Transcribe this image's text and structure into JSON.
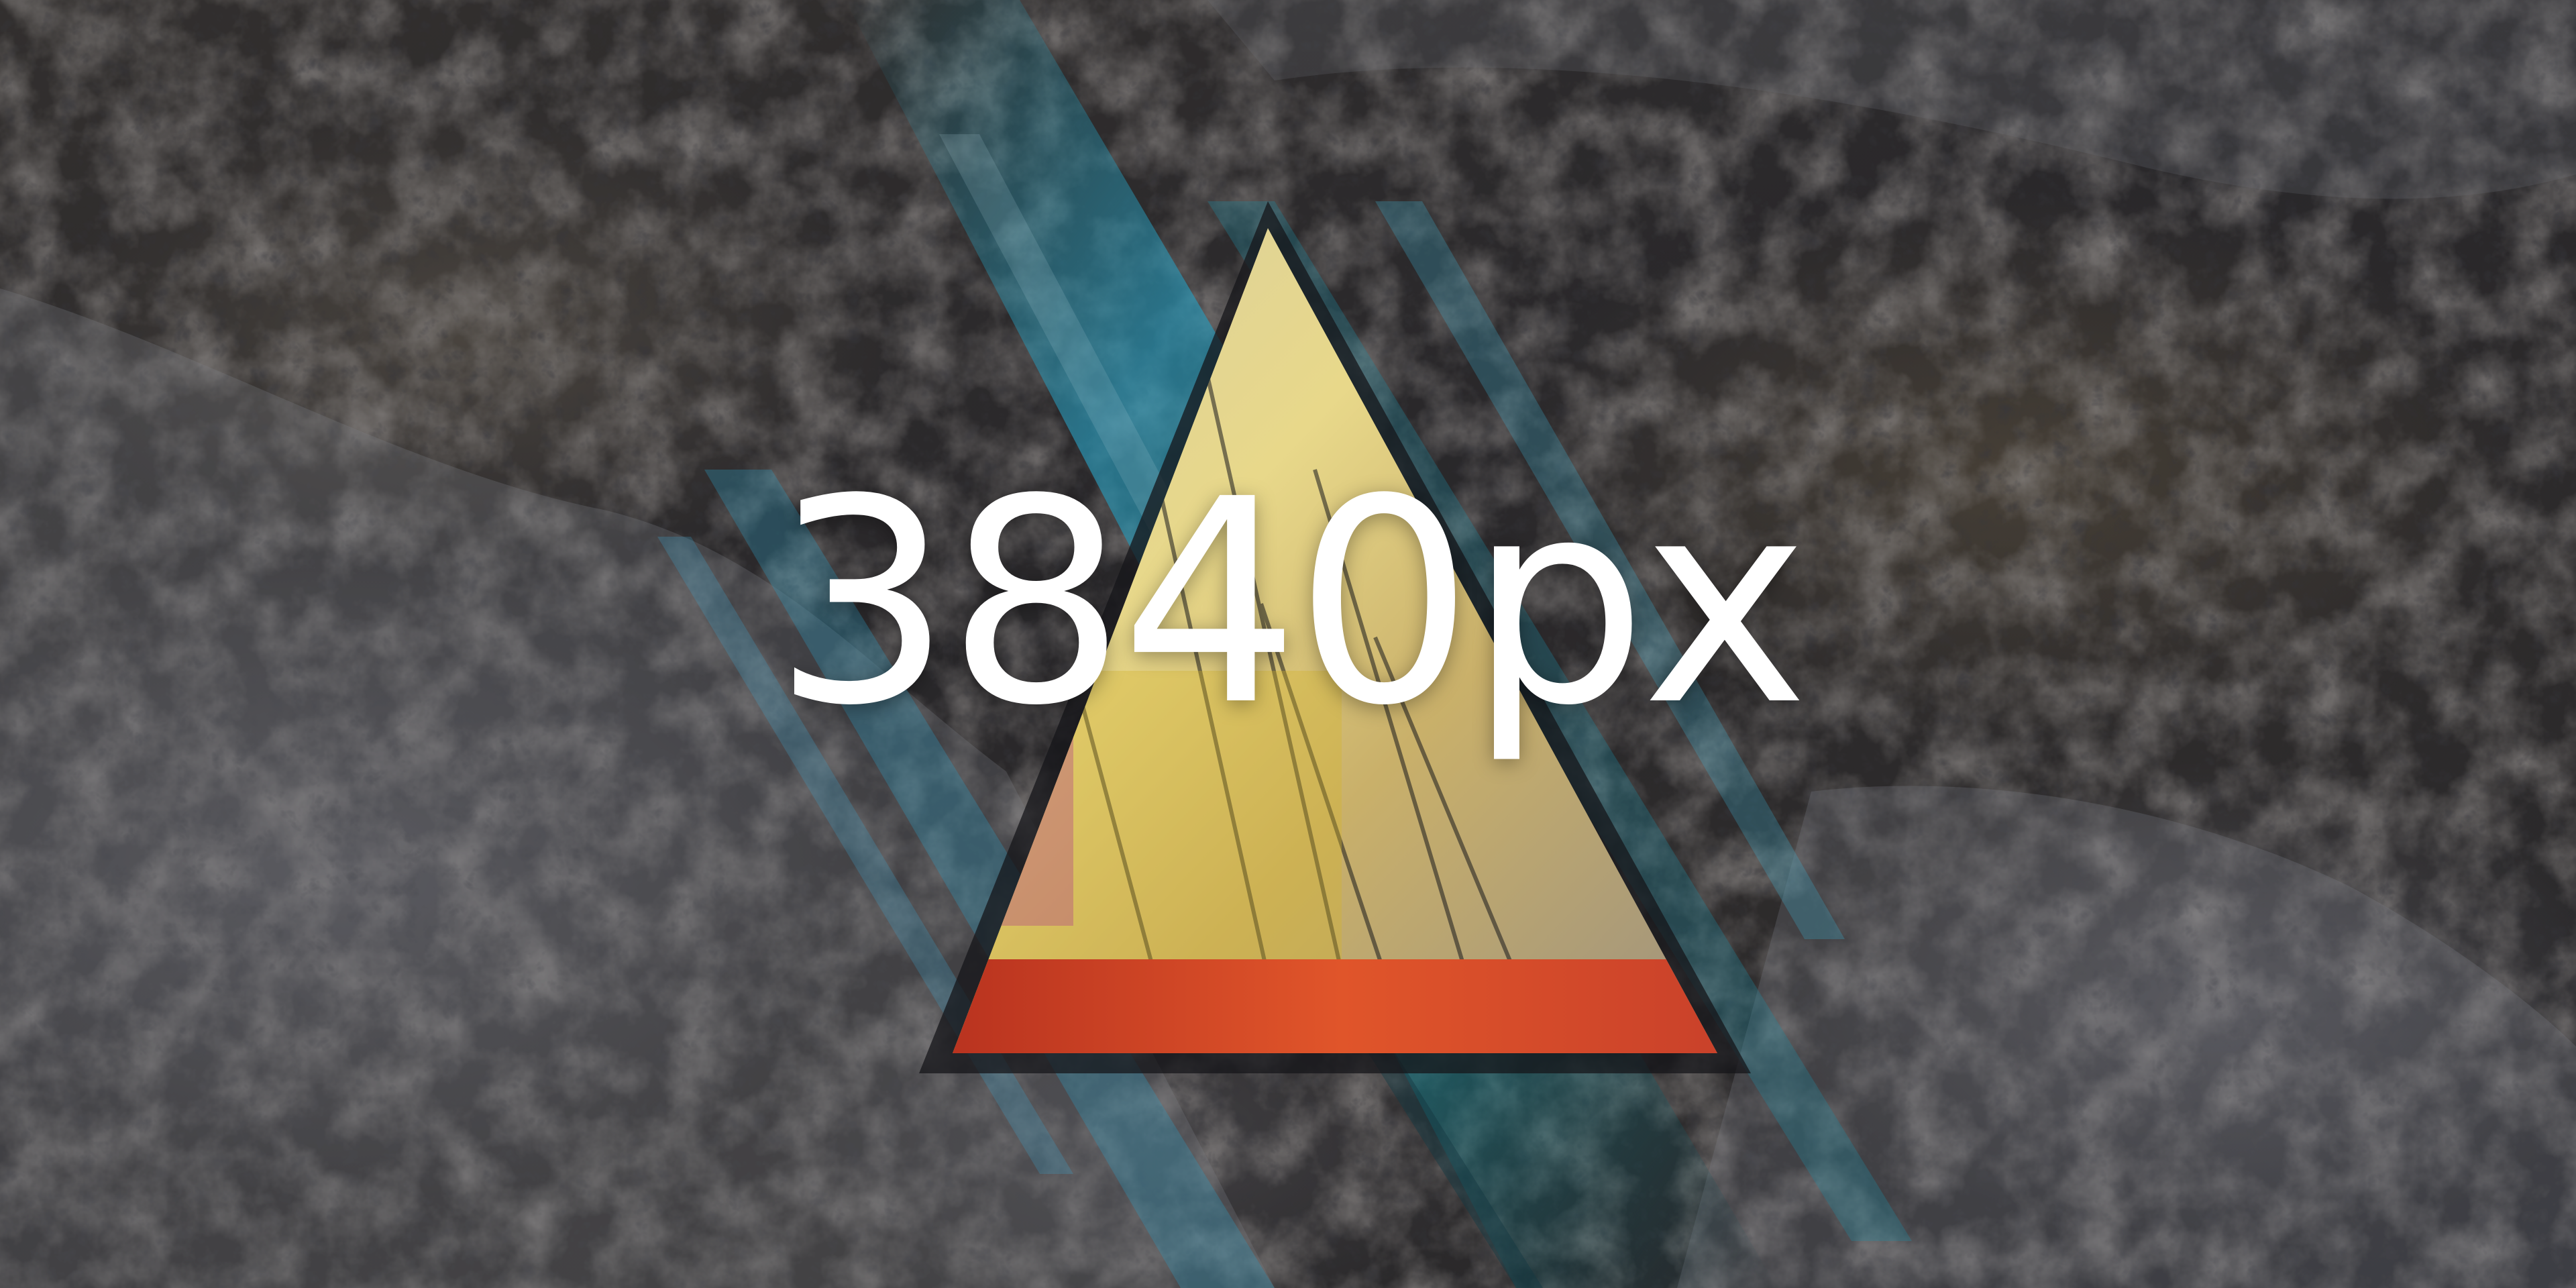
{
  "wallpaper": {
    "caption": "3840px",
    "colors": {
      "background": "#2b2a2c",
      "rock": "#6e6352",
      "snow": "#9a9aa3",
      "streak_teal": "#1f8fa6",
      "streak_blue": "#3aa0c8",
      "triangle_yellow": "#e8d88a",
      "triangle_orange": "#e0552a",
      "caption": "#ffffff"
    }
  }
}
